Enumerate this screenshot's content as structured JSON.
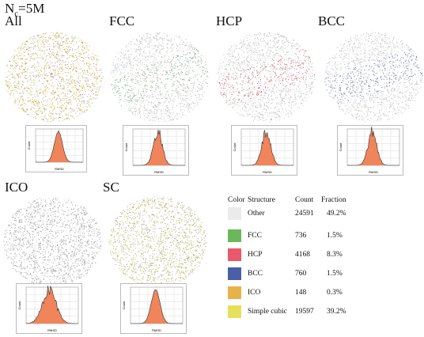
{
  "header": {
    "prefix": "N",
    "subscript": "c",
    "suffix": "=5M"
  },
  "panels": [
    {
      "id": "all",
      "title": "All",
      "color": "#c8b440",
      "tint": "#a86a7a"
    },
    {
      "id": "fcc",
      "title": "FCC",
      "color": "#7fb07f",
      "tint": "#aaaaaa"
    },
    {
      "id": "hcp",
      "title": "HCP",
      "color": "#c86470",
      "tint": "#aaaaaa"
    },
    {
      "id": "bcc",
      "title": "BCC",
      "color": "#6b78b0",
      "tint": "#aaaaaa"
    },
    {
      "id": "ico",
      "title": "ICO",
      "color": "#9a9a9a",
      "tint": "#bbbbbb"
    },
    {
      "id": "sc",
      "title": "SC",
      "color": "#b8b450",
      "tint": "#9aa0a0"
    }
  ],
  "histogram": {
    "ylabel": "Count",
    "xlabel": "RMSD",
    "fill": "#f0845a",
    "line": "#333333"
  },
  "legend": {
    "headers": {
      "color": "Color",
      "structure": "Structure",
      "count": "Count",
      "fraction": "Fraction"
    },
    "rows": [
      {
        "color": "#ebebeb",
        "structure": "Other",
        "count": "24591",
        "fraction": "49.2%"
      },
      {
        "color": "#6ab85a",
        "structure": "FCC",
        "count": "736",
        "fraction": "1.5%"
      },
      {
        "color": "#e8596a",
        "structure": "HCP",
        "count": "4168",
        "fraction": "8.3%"
      },
      {
        "color": "#4a5fa8",
        "structure": "BCC",
        "count": "760",
        "fraction": "1.5%"
      },
      {
        "color": "#e8b24a",
        "structure": "ICO",
        "count": "148",
        "fraction": "0.3%"
      },
      {
        "color": "#e6e05a",
        "structure": "Simple cubic",
        "count": "19597",
        "fraction": "39.2%"
      }
    ]
  }
}
